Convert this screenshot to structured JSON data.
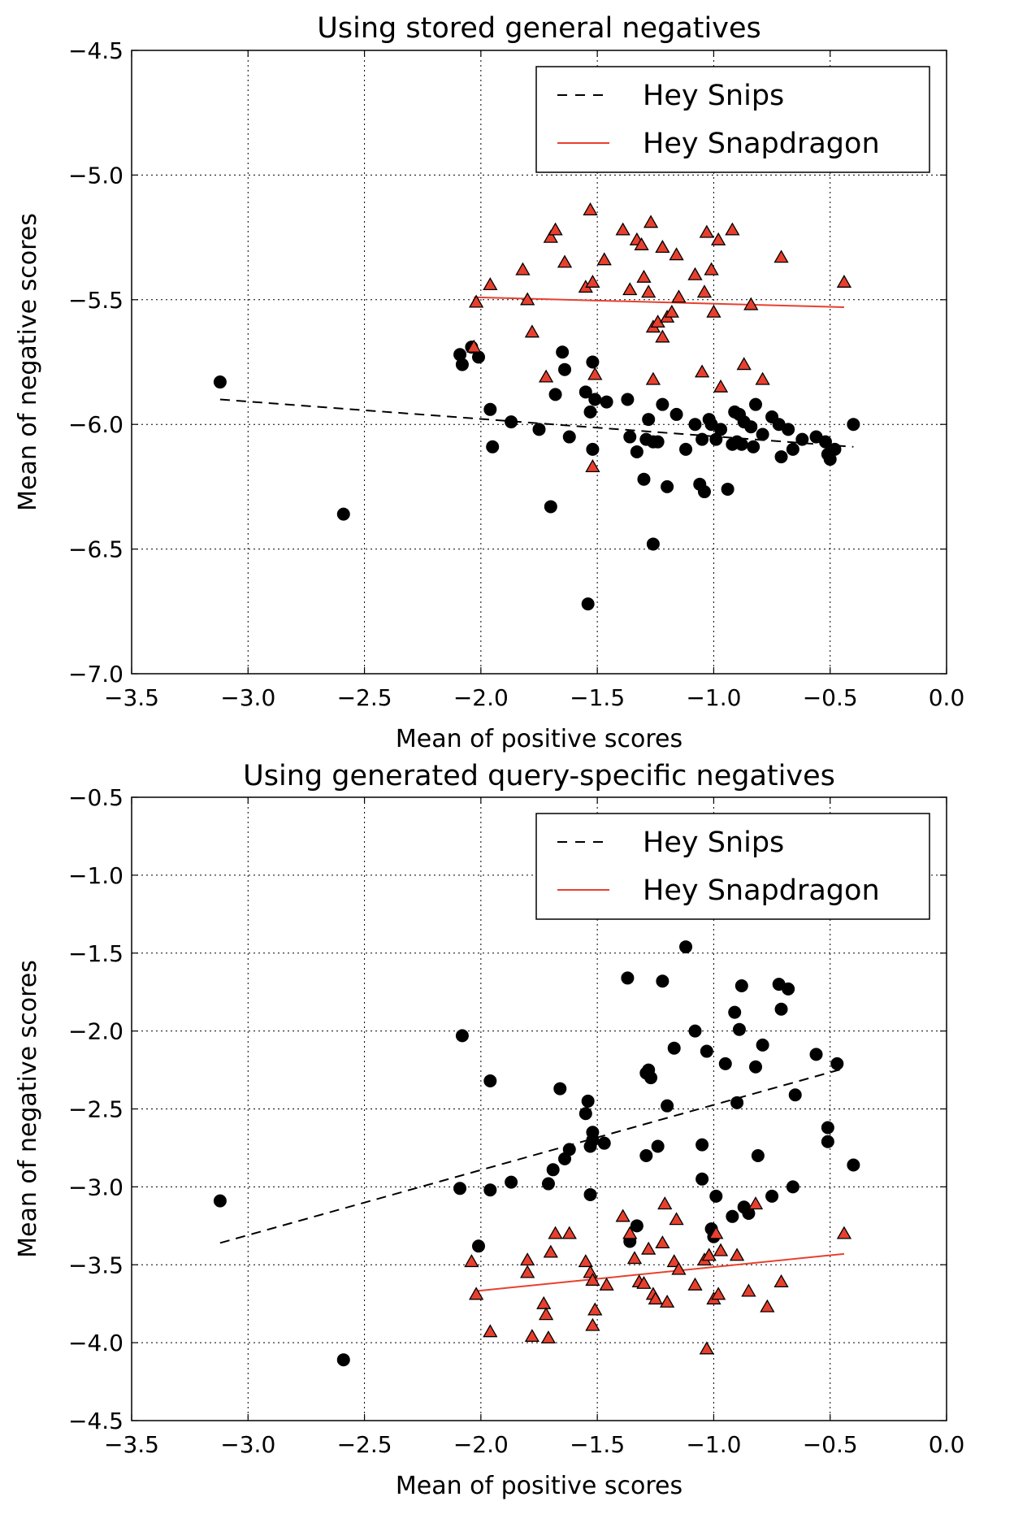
{
  "chart_data": [
    {
      "type": "scatter",
      "title": "Using stored general negatives",
      "xlabel": "Mean of positive scores",
      "ylabel": "Mean of negative scores",
      "xlim": [
        -3.5,
        0.0
      ],
      "ylim": [
        -7.0,
        -4.5
      ],
      "xticks": [
        -3.5,
        -3.0,
        -2.5,
        -2.0,
        -1.5,
        -1.0,
        -0.5,
        0.0
      ],
      "yticks": [
        -7.0,
        -6.5,
        -6.0,
        -5.5,
        -5.0,
        -4.5
      ],
      "grid": true,
      "legend_position": "top-right",
      "series": [
        {
          "name": "Hey Snips",
          "marker": "circle",
          "color": "#000000",
          "points": [
            [
              -3.12,
              -5.83
            ],
            [
              -2.59,
              -6.36
            ],
            [
              -2.09,
              -5.72
            ],
            [
              -2.08,
              -5.76
            ],
            [
              -2.04,
              -5.69
            ],
            [
              -2.01,
              -5.73
            ],
            [
              -1.96,
              -5.94
            ],
            [
              -1.95,
              -6.09
            ],
            [
              -1.87,
              -5.99
            ],
            [
              -1.7,
              -6.33
            ],
            [
              -1.68,
              -5.88
            ],
            [
              -1.65,
              -5.71
            ],
            [
              -1.64,
              -5.78
            ],
            [
              -1.62,
              -6.05
            ],
            [
              -1.55,
              -5.87
            ],
            [
              -1.53,
              -5.95
            ],
            [
              -1.52,
              -5.75
            ],
            [
              -1.52,
              -6.1
            ],
            [
              -1.51,
              -5.9
            ],
            [
              -1.46,
              -5.91
            ],
            [
              -1.37,
              -5.9
            ],
            [
              -1.36,
              -6.05
            ],
            [
              -1.33,
              -6.11
            ],
            [
              -1.3,
              -6.22
            ],
            [
              -1.29,
              -6.06
            ],
            [
              -1.28,
              -5.98
            ],
            [
              -1.26,
              -6.07
            ],
            [
              -1.24,
              -6.07
            ],
            [
              -1.22,
              -5.92
            ],
            [
              -1.2,
              -6.25
            ],
            [
              -1.16,
              -5.96
            ],
            [
              -1.12,
              -6.1
            ],
            [
              -1.08,
              -6.0
            ],
            [
              -1.06,
              -6.24
            ],
            [
              -1.05,
              -6.06
            ],
            [
              -1.04,
              -6.27
            ],
            [
              -1.02,
              -5.98
            ],
            [
              -1.01,
              -6.0
            ],
            [
              -0.99,
              -6.06
            ],
            [
              -0.97,
              -6.02
            ],
            [
              -0.94,
              -6.26
            ],
            [
              -0.92,
              -6.08
            ],
            [
              -0.91,
              -5.95
            ],
            [
              -0.9,
              -6.07
            ],
            [
              -0.89,
              -5.96
            ],
            [
              -0.88,
              -6.08
            ],
            [
              -0.87,
              -5.99
            ],
            [
              -0.84,
              -6.01
            ],
            [
              -0.83,
              -6.09
            ],
            [
              -0.82,
              -5.92
            ],
            [
              -0.79,
              -6.04
            ],
            [
              -0.75,
              -5.97
            ],
            [
              -0.72,
              -6.0
            ],
            [
              -0.71,
              -6.13
            ],
            [
              -0.68,
              -6.02
            ],
            [
              -0.66,
              -6.1
            ],
            [
              -0.62,
              -6.06
            ],
            [
              -0.56,
              -6.05
            ],
            [
              -0.52,
              -6.07
            ],
            [
              -0.51,
              -6.12
            ],
            [
              -0.5,
              -6.14
            ],
            [
              -0.48,
              -6.1
            ],
            [
              -0.4,
              -6.0
            ],
            [
              -1.54,
              -6.72
            ],
            [
              -1.26,
              -6.48
            ],
            [
              -1.75,
              -6.02
            ]
          ]
        },
        {
          "name": "Hey Snapdragon",
          "marker": "triangle",
          "color": "#e8402e",
          "points": [
            [
              -2.03,
              -5.69
            ],
            [
              -2.02,
              -5.51
            ],
            [
              -1.96,
              -5.44
            ],
            [
              -1.82,
              -5.38
            ],
            [
              -1.8,
              -5.5
            ],
            [
              -1.78,
              -5.63
            ],
            [
              -1.72,
              -5.81
            ],
            [
              -1.7,
              -5.25
            ],
            [
              -1.68,
              -5.22
            ],
            [
              -1.64,
              -5.35
            ],
            [
              -1.55,
              -5.45
            ],
            [
              -1.53,
              -5.14
            ],
            [
              -1.52,
              -5.43
            ],
            [
              -1.51,
              -5.8
            ],
            [
              -1.47,
              -5.34
            ],
            [
              -1.39,
              -5.22
            ],
            [
              -1.36,
              -5.46
            ],
            [
              -1.33,
              -5.26
            ],
            [
              -1.31,
              -5.28
            ],
            [
              -1.3,
              -5.41
            ],
            [
              -1.28,
              -5.47
            ],
            [
              -1.27,
              -5.19
            ],
            [
              -1.26,
              -5.61
            ],
            [
              -1.24,
              -5.59
            ],
            [
              -1.22,
              -5.29
            ],
            [
              -1.22,
              -5.65
            ],
            [
              -1.2,
              -5.57
            ],
            [
              -1.18,
              -5.55
            ],
            [
              -1.16,
              -5.32
            ],
            [
              -1.15,
              -5.49
            ],
            [
              -1.08,
              -5.4
            ],
            [
              -1.05,
              -5.79
            ],
            [
              -1.04,
              -5.47
            ],
            [
              -1.03,
              -5.23
            ],
            [
              -1.01,
              -5.38
            ],
            [
              -1.0,
              -5.55
            ],
            [
              -0.98,
              -5.26
            ],
            [
              -0.97,
              -5.85
            ],
            [
              -0.92,
              -5.22
            ],
            [
              -0.87,
              -5.76
            ],
            [
              -0.84,
              -5.52
            ],
            [
              -0.79,
              -5.82
            ],
            [
              -0.71,
              -5.33
            ],
            [
              -0.44,
              -5.43
            ],
            [
              -1.52,
              -6.17
            ],
            [
              -1.26,
              -5.82
            ]
          ]
        }
      ],
      "fit_lines": [
        {
          "name": "Hey Snips",
          "style": "dashed",
          "color": "#000000",
          "x": [
            -3.12,
            -0.4
          ],
          "y": [
            -5.9,
            -6.09
          ]
        },
        {
          "name": "Hey Snapdragon",
          "style": "solid",
          "color": "#e8402e",
          "x": [
            -2.03,
            -0.44
          ],
          "y": [
            -5.49,
            -5.53
          ]
        }
      ]
    },
    {
      "type": "scatter",
      "title": "Using generated query-specific negatives",
      "xlabel": "Mean of positive scores",
      "ylabel": "Mean of negative scores",
      "xlim": [
        -3.5,
        0.0
      ],
      "ylim": [
        -4.5,
        -0.5
      ],
      "xticks": [
        -3.5,
        -3.0,
        -2.5,
        -2.0,
        -1.5,
        -1.0,
        -0.5,
        0.0
      ],
      "yticks": [
        -4.5,
        -4.0,
        -3.5,
        -3.0,
        -2.5,
        -2.0,
        -1.5,
        -1.0,
        -0.5
      ],
      "grid": true,
      "legend_position": "top-right",
      "series": [
        {
          "name": "Hey Snips",
          "marker": "circle",
          "color": "#000000",
          "points": [
            [
              -3.12,
              -3.09
            ],
            [
              -2.59,
              -4.11
            ],
            [
              -2.09,
              -3.01
            ],
            [
              -2.08,
              -2.03
            ],
            [
              -2.01,
              -3.38
            ],
            [
              -1.96,
              -2.32
            ],
            [
              -1.96,
              -3.02
            ],
            [
              -1.87,
              -2.97
            ],
            [
              -1.71,
              -2.98
            ],
            [
              -1.69,
              -2.89
            ],
            [
              -1.66,
              -2.37
            ],
            [
              -1.64,
              -2.82
            ],
            [
              -1.62,
              -2.76
            ],
            [
              -1.55,
              -2.53
            ],
            [
              -1.54,
              -2.45
            ],
            [
              -1.53,
              -2.74
            ],
            [
              -1.53,
              -3.05
            ],
            [
              -1.52,
              -2.65
            ],
            [
              -1.52,
              -2.7
            ],
            [
              -1.47,
              -2.72
            ],
            [
              -1.37,
              -1.66
            ],
            [
              -1.36,
              -3.35
            ],
            [
              -1.33,
              -3.25
            ],
            [
              -1.29,
              -2.27
            ],
            [
              -1.29,
              -2.8
            ],
            [
              -1.28,
              -2.25
            ],
            [
              -1.27,
              -2.3
            ],
            [
              -1.24,
              -2.74
            ],
            [
              -1.22,
              -1.68
            ],
            [
              -1.2,
              -2.48
            ],
            [
              -1.17,
              -2.11
            ],
            [
              -1.12,
              -1.46
            ],
            [
              -1.08,
              -2.0
            ],
            [
              -1.05,
              -2.73
            ],
            [
              -1.05,
              -2.95
            ],
            [
              -1.03,
              -2.13
            ],
            [
              -1.01,
              -3.27
            ],
            [
              -1.0,
              -3.32
            ],
            [
              -0.99,
              -3.06
            ],
            [
              -0.95,
              -2.21
            ],
            [
              -0.92,
              -3.19
            ],
            [
              -0.91,
              -1.88
            ],
            [
              -0.9,
              -2.46
            ],
            [
              -0.89,
              -1.99
            ],
            [
              -0.88,
              -1.71
            ],
            [
              -0.87,
              -3.13
            ],
            [
              -0.85,
              -3.17
            ],
            [
              -0.82,
              -2.23
            ],
            [
              -0.81,
              -2.8
            ],
            [
              -0.79,
              -2.09
            ],
            [
              -0.75,
              -3.06
            ],
            [
              -0.72,
              -1.7
            ],
            [
              -0.71,
              -1.86
            ],
            [
              -0.68,
              -1.73
            ],
            [
              -0.66,
              -3.0
            ],
            [
              -0.65,
              -2.41
            ],
            [
              -0.56,
              -2.15
            ],
            [
              -0.51,
              -2.62
            ],
            [
              -0.51,
              -2.71
            ],
            [
              -0.47,
              -2.21
            ],
            [
              -0.4,
              -2.86
            ]
          ]
        },
        {
          "name": "Hey Snapdragon",
          "marker": "triangle",
          "color": "#e8402e",
          "points": [
            [
              -2.04,
              -3.48
            ],
            [
              -2.02,
              -3.69
            ],
            [
              -1.96,
              -3.93
            ],
            [
              -1.8,
              -3.47
            ],
            [
              -1.8,
              -3.55
            ],
            [
              -1.78,
              -3.96
            ],
            [
              -1.73,
              -3.75
            ],
            [
              -1.72,
              -3.82
            ],
            [
              -1.71,
              -3.97
            ],
            [
              -1.7,
              -3.42
            ],
            [
              -1.68,
              -3.3
            ],
            [
              -1.62,
              -3.3
            ],
            [
              -1.55,
              -3.48
            ],
            [
              -1.53,
              -3.55
            ],
            [
              -1.52,
              -3.89
            ],
            [
              -1.52,
              -3.6
            ],
            [
              -1.51,
              -3.79
            ],
            [
              -1.46,
              -3.63
            ],
            [
              -1.39,
              -3.19
            ],
            [
              -1.36,
              -3.3
            ],
            [
              -1.34,
              -3.46
            ],
            [
              -1.32,
              -3.61
            ],
            [
              -1.3,
              -3.62
            ],
            [
              -1.28,
              -3.4
            ],
            [
              -1.26,
              -3.69
            ],
            [
              -1.25,
              -3.72
            ],
            [
              -1.22,
              -3.36
            ],
            [
              -1.21,
              -3.11
            ],
            [
              -1.2,
              -3.74
            ],
            [
              -1.17,
              -3.48
            ],
            [
              -1.16,
              -3.21
            ],
            [
              -1.15,
              -3.53
            ],
            [
              -1.08,
              -3.63
            ],
            [
              -1.04,
              -3.47
            ],
            [
              -1.03,
              -4.04
            ],
            [
              -1.02,
              -3.44
            ],
            [
              -1.0,
              -3.72
            ],
            [
              -0.99,
              -3.3
            ],
            [
              -0.98,
              -3.69
            ],
            [
              -0.97,
              -3.41
            ],
            [
              -0.9,
              -3.44
            ],
            [
              -0.85,
              -3.67
            ],
            [
              -0.82,
              -3.11
            ],
            [
              -0.77,
              -3.77
            ],
            [
              -0.71,
              -3.61
            ],
            [
              -0.44,
              -3.3
            ]
          ]
        }
      ],
      "fit_lines": [
        {
          "name": "Hey Snips",
          "style": "dashed",
          "color": "#000000",
          "x": [
            -3.12,
            -0.44
          ],
          "y": [
            -3.36,
            -2.24
          ]
        },
        {
          "name": "Hey Snapdragon",
          "style": "solid",
          "color": "#e8402e",
          "x": [
            -2.03,
            -0.44
          ],
          "y": [
            -3.67,
            -3.43
          ]
        }
      ]
    }
  ]
}
